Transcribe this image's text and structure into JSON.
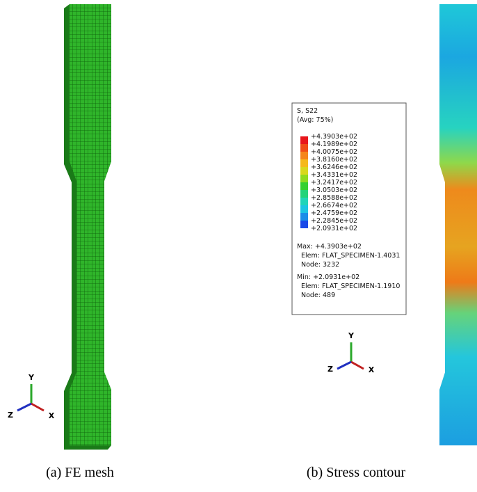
{
  "panels": [
    {
      "caption": "(a) FE mesh",
      "triad": {
        "y": "Y",
        "z": "Z",
        "x": "X"
      }
    },
    {
      "caption": "(b) Stress contour",
      "legend": {
        "title": "S, S22",
        "subtitle": "(Avg: 75%)",
        "levels": [
          "+4.3903e+02",
          "+4.1989e+02",
          "+4.0075e+02",
          "+3.8160e+02",
          "+3.6246e+02",
          "+3.4331e+02",
          "+3.2417e+02",
          "+3.0503e+02",
          "+2.8588e+02",
          "+2.6674e+02",
          "+2.4759e+02",
          "+2.2845e+02",
          "+2.0931e+02"
        ],
        "max": "Max: +4.3903e+02",
        "max_elem": "Elem: FLAT_SPECIMEN-1.4031",
        "max_node": "Node: 3232",
        "min": "Min: +2.0931e+02",
        "min_elem": "Elem: FLAT_SPECIMEN-1.1910",
        "min_node": "Node: 489"
      },
      "triad": {
        "y": "Y",
        "z": "Z",
        "x": "X"
      }
    }
  ]
}
